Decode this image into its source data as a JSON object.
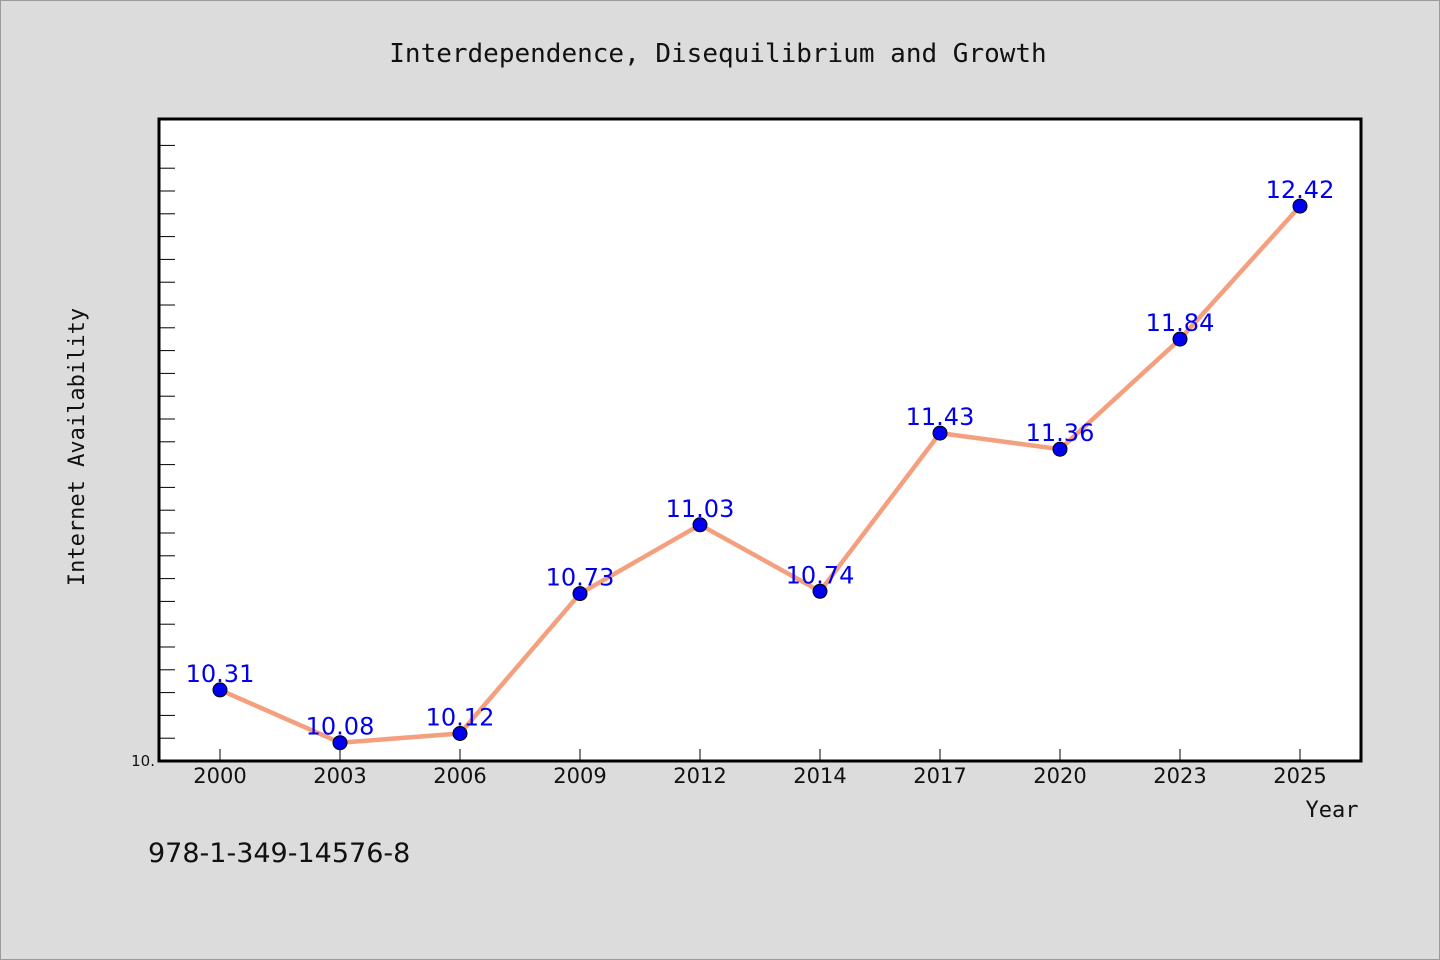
{
  "chart_data": {
    "type": "line",
    "title": "Interdependence, Disequilibrium and Growth",
    "xlabel": "Year",
    "ylabel": "Internet Availability",
    "categories": [
      "2000",
      "2003",
      "2006",
      "2009",
      "2012",
      "2014",
      "2017",
      "2020",
      "2023",
      "2025"
    ],
    "series": [
      {
        "values": [
          10.31,
          10.08,
          10.12,
          10.73,
          11.03,
          10.74,
          11.43,
          11.36,
          11.84,
          12.42
        ],
        "color": "#f4a07e",
        "marker_color": "#0000ee"
      }
    ],
    "data_labels": [
      "10.31",
      "10.08",
      "10.12",
      "10.73",
      "11.03",
      "10.74",
      "11.43",
      "11.36",
      "11.84",
      "12.42"
    ],
    "y_tick_labels": [
      {
        "value": 10.0,
        "label": "10."
      }
    ],
    "ylim": [
      10.0,
      12.8
    ],
    "grid": false,
    "label_color": "#0000ee",
    "background": "#dcdcdc",
    "plot_background": "#ffffff"
  },
  "footer": {
    "isbn": "978-1-349-14576-8"
  }
}
